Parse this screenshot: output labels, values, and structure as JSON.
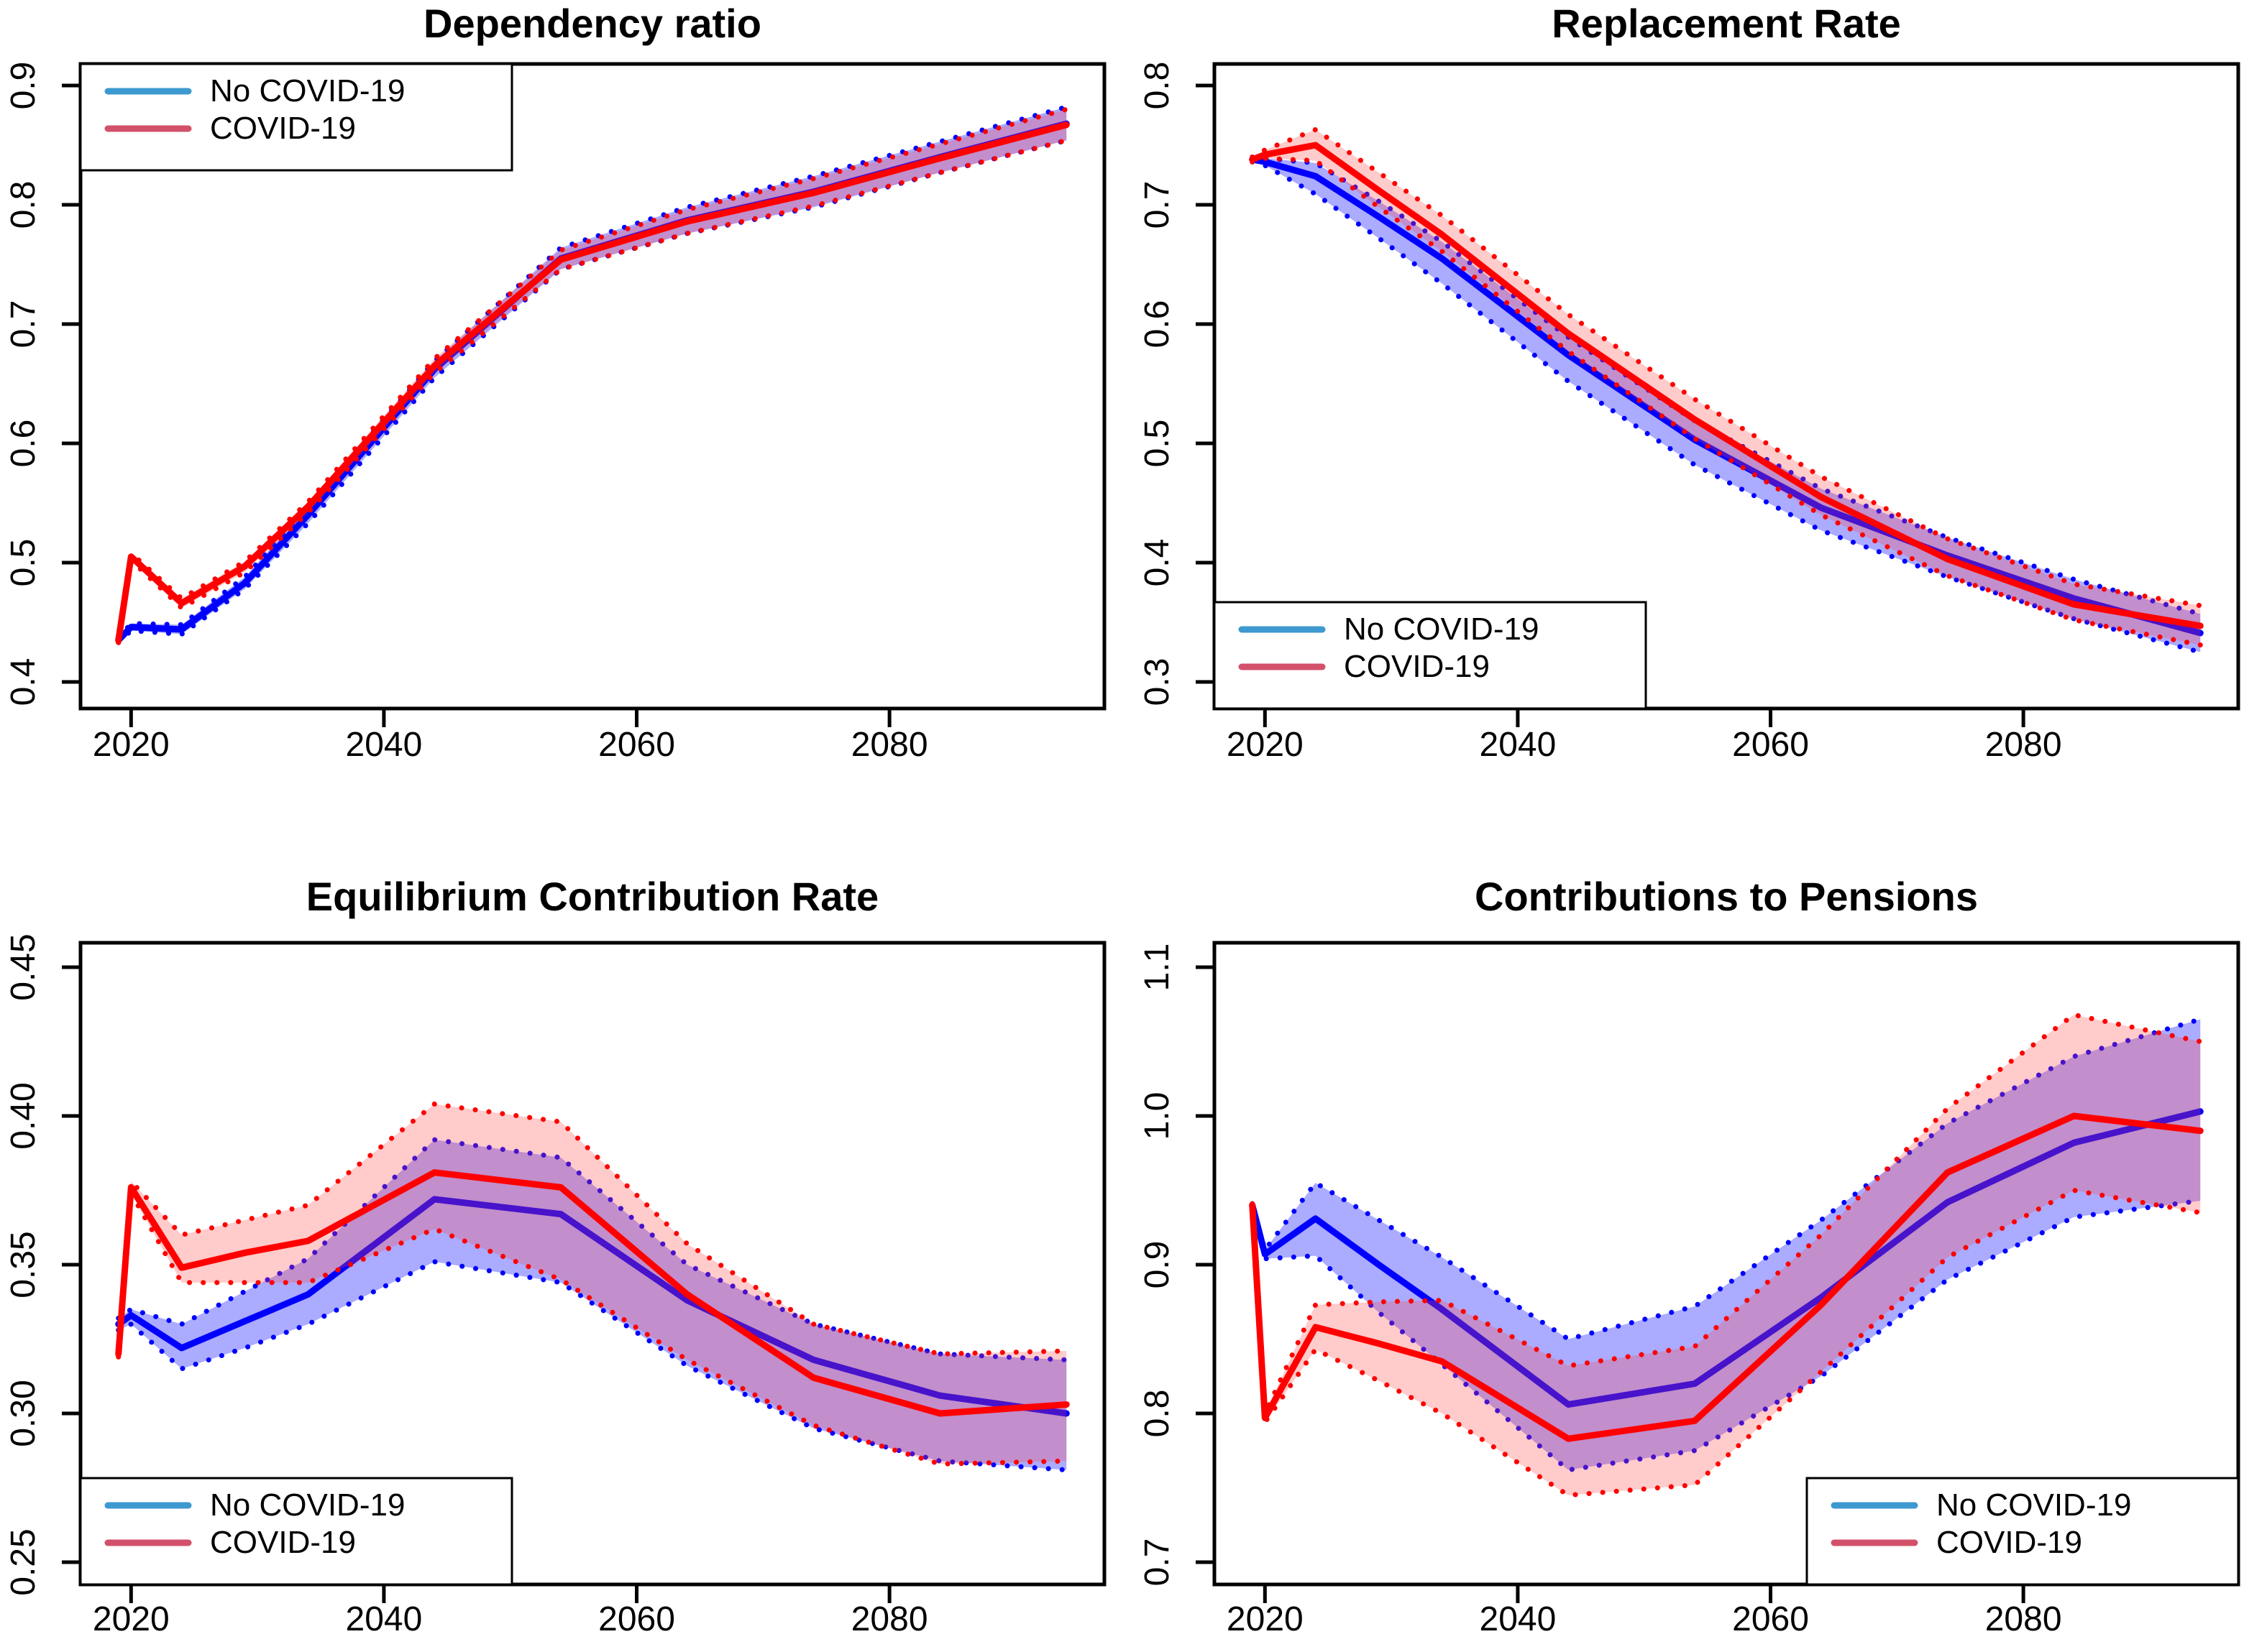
{
  "figure": {
    "background": "#ffffff",
    "panel_count": 4
  },
  "colors": {
    "no_covid_line": "#0000ff",
    "covid_line": "#ff0000",
    "no_covid_band": "rgba(0,0,255,0.33)",
    "covid_band": "rgba(255,70,70,0.28)",
    "no_covid_band_edge": "#0000ff",
    "covid_band_edge": "#ff0000",
    "legend_no_covid_swatch": "#3e99d0",
    "legend_covid_swatch": "#d3506a",
    "axis": "#000000"
  },
  "legend": {
    "no_covid_label": "No COVID-19",
    "covid_label": "COVID-19"
  },
  "chart_data": [
    {
      "type": "line",
      "title": "Dependency ratio",
      "xlabel": "",
      "ylabel": "",
      "grid": false,
      "x": [
        2019,
        2020,
        2024,
        2029,
        2034,
        2044,
        2054,
        2064,
        2074,
        2084,
        2094
      ],
      "xticks": [
        2020,
        2040,
        2060,
        2080
      ],
      "xlim": [
        2016,
        2097
      ],
      "ytick_labels": [
        "0.9",
        "0.8",
        "0.7",
        "0.6",
        "0.5",
        "0.4"
      ],
      "yticks": [
        0.9,
        0.8,
        0.7,
        0.6,
        0.5,
        0.4
      ],
      "ylim": [
        0.378,
        0.918
      ],
      "legend_position": "top-left",
      "series": [
        {
          "name": "No COVID-19",
          "color": "#0000ff",
          "band_fill": "rgba(0,0,255,0.33)",
          "values": [
            0.435,
            0.446,
            0.444,
            0.483,
            0.54,
            0.662,
            0.755,
            0.787,
            0.811,
            0.84,
            0.868
          ],
          "upper": [
            0.437,
            0.449,
            0.448,
            0.488,
            0.547,
            0.669,
            0.764,
            0.798,
            0.824,
            0.853,
            0.882
          ],
          "lower": [
            0.433,
            0.443,
            0.44,
            0.478,
            0.533,
            0.655,
            0.746,
            0.776,
            0.798,
            0.827,
            0.854
          ]
        },
        {
          "name": "COVID-19",
          "color": "#ff0000",
          "band_fill": "rgba(255,70,70,0.28)",
          "values": [
            0.435,
            0.505,
            0.466,
            0.497,
            0.547,
            0.665,
            0.754,
            0.786,
            0.81,
            0.839,
            0.867
          ],
          "upper": [
            0.437,
            0.508,
            0.47,
            0.501,
            0.551,
            0.671,
            0.762,
            0.796,
            0.822,
            0.851,
            0.88
          ],
          "lower": [
            0.433,
            0.502,
            0.462,
            0.492,
            0.542,
            0.659,
            0.746,
            0.776,
            0.799,
            0.827,
            0.854
          ]
        }
      ]
    },
    {
      "type": "line",
      "title": "Replacement Rate",
      "xlabel": "",
      "ylabel": "",
      "grid": false,
      "x": [
        2019,
        2020,
        2024,
        2029,
        2034,
        2044,
        2054,
        2064,
        2074,
        2084,
        2094
      ],
      "xticks": [
        2020,
        2040,
        2060,
        2080
      ],
      "xlim": [
        2016,
        2097
      ],
      "ytick_labels": [
        "0.8",
        "0.7",
        "0.6",
        "0.5",
        "0.4",
        "0.3"
      ],
      "yticks": [
        0.8,
        0.7,
        0.6,
        0.5,
        0.4,
        0.3
      ],
      "ylim": [
        0.278,
        0.818
      ],
      "legend_position": "bottom-left",
      "series": [
        {
          "name": "No COVID-19",
          "color": "#0000ff",
          "band_fill": "rgba(0,0,255,0.33)",
          "values": [
            0.738,
            0.736,
            0.724,
            0.69,
            0.655,
            0.574,
            0.503,
            0.446,
            0.406,
            0.37,
            0.341
          ],
          "upper": [
            0.74,
            0.739,
            0.735,
            0.703,
            0.669,
            0.589,
            0.519,
            0.462,
            0.421,
            0.386,
            0.357
          ],
          "lower": [
            0.736,
            0.733,
            0.709,
            0.672,
            0.634,
            0.552,
            0.482,
            0.427,
            0.388,
            0.353,
            0.325
          ]
        },
        {
          "name": "COVID-19",
          "color": "#ff0000",
          "band_fill": "rgba(255,70,70,0.28)",
          "values": [
            0.738,
            0.742,
            0.75,
            0.712,
            0.675,
            0.592,
            0.52,
            0.455,
            0.403,
            0.365,
            0.347
          ],
          "upper": [
            0.74,
            0.746,
            0.763,
            0.727,
            0.691,
            0.608,
            0.537,
            0.472,
            0.42,
            0.382,
            0.364
          ],
          "lower": [
            0.736,
            0.739,
            0.737,
            0.698,
            0.661,
            0.577,
            0.504,
            0.44,
            0.389,
            0.352,
            0.331
          ]
        }
      ]
    },
    {
      "type": "line",
      "title": "Equilibrium Contribution Rate",
      "xlabel": "",
      "ylabel": "",
      "grid": false,
      "x": [
        2019,
        2020,
        2024,
        2029,
        2034,
        2044,
        2054,
        2064,
        2074,
        2084,
        2094
      ],
      "xticks": [
        2020,
        2040,
        2060,
        2080
      ],
      "xlim": [
        2016,
        2097
      ],
      "ytick_labels": [
        "0.45",
        "0.40",
        "0.35",
        "0.30",
        "0.25"
      ],
      "yticks": [
        0.45,
        0.4,
        0.35,
        0.3,
        0.25
      ],
      "ylim": [
        0.2425,
        0.4585
      ],
      "legend_position": "bottom-left",
      "series": [
        {
          "name": "No COVID-19",
          "color": "#0000ff",
          "band_fill": "rgba(0,0,255,0.33)",
          "values": [
            0.33,
            0.333,
            0.322,
            0.331,
            0.34,
            0.372,
            0.367,
            0.338,
            0.318,
            0.306,
            0.3
          ],
          "upper": [
            0.332,
            0.335,
            0.33,
            0.341,
            0.352,
            0.392,
            0.386,
            0.35,
            0.33,
            0.32,
            0.318
          ],
          "lower": [
            0.328,
            0.33,
            0.315,
            0.322,
            0.33,
            0.351,
            0.344,
            0.316,
            0.295,
            0.284,
            0.281
          ]
        },
        {
          "name": "COVID-19",
          "color": "#ff0000",
          "band_fill": "rgba(255,70,70,0.28)",
          "values": [
            0.32,
            0.376,
            0.349,
            0.354,
            0.358,
            0.381,
            0.376,
            0.34,
            0.312,
            0.3,
            0.303
          ],
          "upper": [
            0.321,
            0.378,
            0.36,
            0.365,
            0.37,
            0.404,
            0.398,
            0.357,
            0.33,
            0.32,
            0.321
          ],
          "lower": [
            0.319,
            0.374,
            0.344,
            0.344,
            0.344,
            0.362,
            0.345,
            0.318,
            0.296,
            0.283,
            0.284
          ]
        }
      ]
    },
    {
      "type": "line",
      "title": "Contributions to Pensions",
      "xlabel": "",
      "ylabel": "",
      "grid": false,
      "x": [
        2019,
        2020,
        2024,
        2029,
        2034,
        2044,
        2054,
        2064,
        2074,
        2084,
        2094
      ],
      "xticks": [
        2020,
        2040,
        2060,
        2080
      ],
      "xlim": [
        2016,
        2097
      ],
      "ytick_labels": [
        "1.1",
        "1.0",
        "0.9",
        "0.8",
        "0.7"
      ],
      "yticks": [
        1.1,
        1.0,
        0.9,
        0.8,
        0.7
      ],
      "ylim": [
        0.685,
        1.115
      ],
      "legend_position": "bottom-right",
      "series": [
        {
          "name": "No COVID-19",
          "color": "#0000ff",
          "band_fill": "rgba(0,0,255,0.33)",
          "values": [
            0.94,
            0.907,
            0.931,
            0.9,
            0.87,
            0.806,
            0.82,
            0.878,
            0.942,
            0.982,
            1.003
          ],
          "upper": [
            0.941,
            0.91,
            0.955,
            0.93,
            0.905,
            0.85,
            0.872,
            0.93,
            0.995,
            1.04,
            1.065
          ],
          "lower": [
            0.939,
            0.904,
            0.906,
            0.868,
            0.833,
            0.762,
            0.775,
            0.825,
            0.89,
            0.932,
            0.943
          ]
        },
        {
          "name": "COVID-19",
          "color": "#ff0000",
          "band_fill": "rgba(255,70,70,0.28)",
          "values": [
            0.94,
            0.797,
            0.858,
            0.847,
            0.835,
            0.783,
            0.795,
            0.873,
            0.962,
            1.0,
            0.99
          ],
          "upper": [
            0.941,
            0.8,
            0.873,
            0.875,
            0.876,
            0.832,
            0.845,
            0.92,
            1.005,
            1.068,
            1.05
          ],
          "lower": [
            0.939,
            0.794,
            0.843,
            0.822,
            0.8,
            0.745,
            0.752,
            0.828,
            0.905,
            0.95,
            0.935
          ]
        }
      ]
    }
  ]
}
